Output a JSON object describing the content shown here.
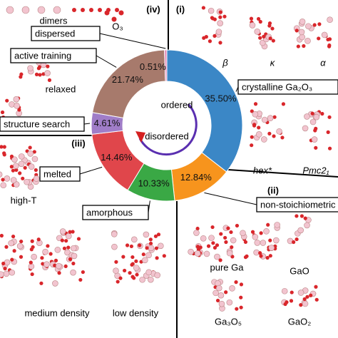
{
  "chart_data": {
    "type": "donut",
    "categories": [
      "crystalline Ga₂O₃",
      "non-stoichiometric",
      "amorphous",
      "melted",
      "structure search",
      "active training",
      "dispersed"
    ],
    "values": [
      35.5,
      12.84,
      10.33,
      14.46,
      4.61,
      21.74,
      0.51
    ],
    "value_labels": [
      "35.50%",
      "12.84%",
      "10.33%",
      "14.46%",
      "4.61%",
      "21.74%",
      "0.51%"
    ],
    "colors": [
      "#3b87c6",
      "#f7941d",
      "#3aa845",
      "#e0464b",
      "#a07dc8",
      "#a77a6c",
      "#e48cb8"
    ],
    "center_labels": [
      {
        "text": "ordered",
        "color": "#2a2ad0"
      },
      {
        "text": "disordered",
        "color": "#d42020"
      }
    ]
  },
  "annotations": [
    "dimers",
    "O₃",
    "(iv)",
    "(i)",
    "(ii)",
    "(iii)",
    "β",
    "κ",
    "α",
    "relaxed",
    "hex*",
    "Pmc2₁",
    "high-T",
    "pure Ga",
    "GaO",
    "Ga₃O₅",
    "GaO₂",
    "medium density",
    "low density"
  ]
}
